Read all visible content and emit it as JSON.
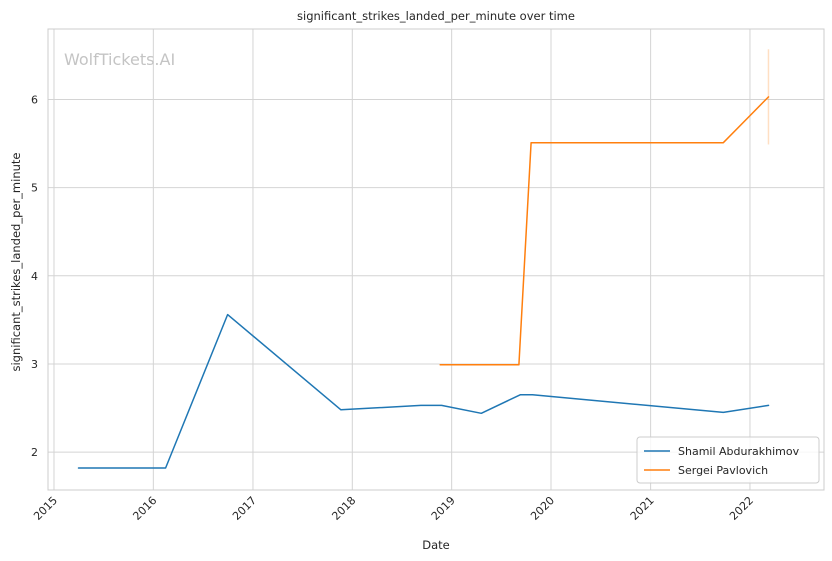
{
  "chart_data": {
    "type": "line",
    "title": "significant_strikes_landed_per_minute over time",
    "xlabel": "Date",
    "ylabel": "significant_strikes_landed_per_minute",
    "watermark": "WolfTickets.AI",
    "x_ticks": [
      "2015",
      "2016",
      "2017",
      "2018",
      "2019",
      "2020",
      "2021",
      "2022"
    ],
    "y_ticks": [
      2,
      3,
      4,
      5,
      6
    ],
    "xlim": [
      "2014-12-10",
      "2022-09-30"
    ],
    "ylim": [
      1.57,
      6.8
    ],
    "grid": true,
    "legend_position": "lower right",
    "series": [
      {
        "name": "Shamil Abdurakhimov",
        "color": "#1f77b4",
        "points": [
          {
            "x": "2015-04-01",
            "y": 1.82
          },
          {
            "x": "2016-02-15",
            "y": 1.82
          },
          {
            "x": "2016-09-30",
            "y": 3.56
          },
          {
            "x": "2017-11-20",
            "y": 2.48
          },
          {
            "x": "2018-09-10",
            "y": 2.53
          },
          {
            "x": "2018-11-25",
            "y": 2.53
          },
          {
            "x": "2019-04-20",
            "y": 2.44
          },
          {
            "x": "2019-09-10",
            "y": 2.65
          },
          {
            "x": "2019-10-25",
            "y": 2.65
          },
          {
            "x": "2021-09-25",
            "y": 2.45
          },
          {
            "x": "2022-03-10",
            "y": 2.53
          }
        ]
      },
      {
        "name": "Sergei Pavlovich",
        "color": "#ff7f0e",
        "points": [
          {
            "x": "2018-11-20",
            "y": 2.99
          },
          {
            "x": "2019-09-05",
            "y": 2.99
          },
          {
            "x": "2019-10-20",
            "y": 5.51
          },
          {
            "x": "2021-09-25",
            "y": 5.51
          },
          {
            "x": "2022-03-10",
            "y": 6.03
          }
        ],
        "error_band": {
          "x": "2022-03-10",
          "low": 5.49,
          "high": 6.57
        }
      }
    ]
  }
}
